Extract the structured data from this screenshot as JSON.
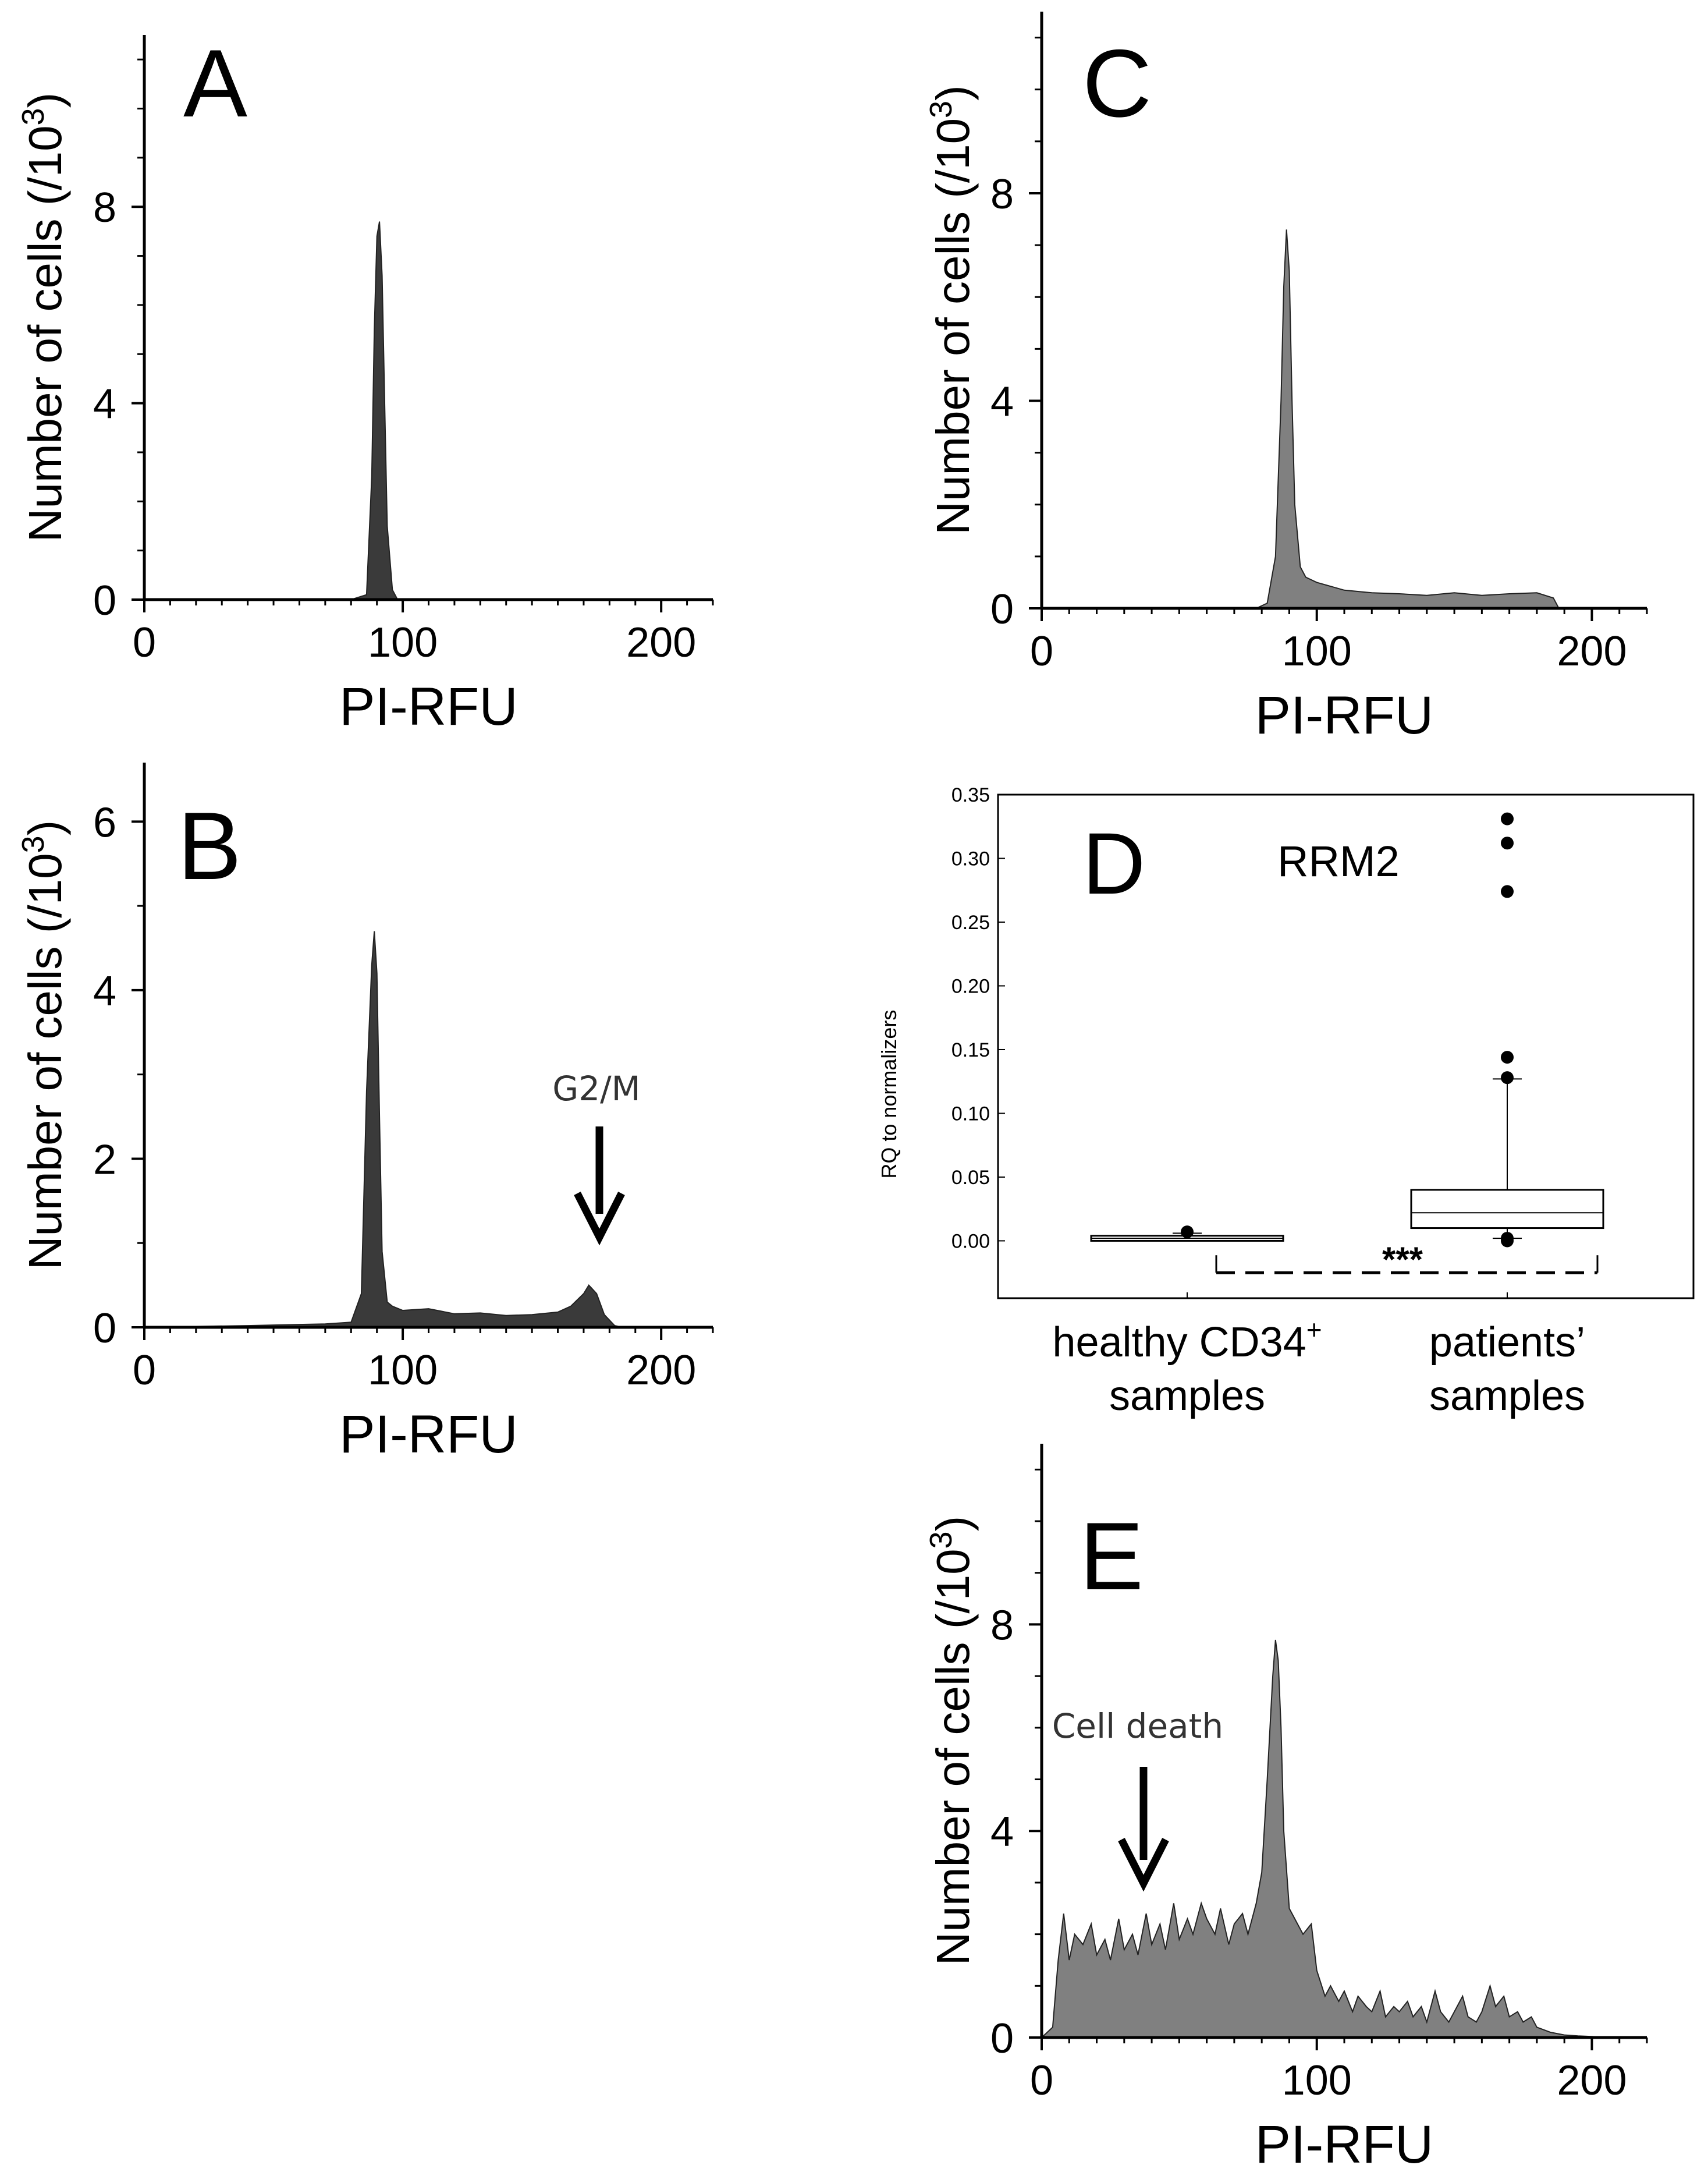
{
  "colors": {
    "hist_dark": "#3a3a3a",
    "hist_mid": "#808080",
    "line": "#000000"
  },
  "chart_data": [
    {
      "id": "A",
      "type": "area",
      "panel_label": "A",
      "xlabel": "PI-RFU",
      "ylabel": "Number of cells (/10",
      "ylabel_sup": "3",
      "ylabel_close": ")",
      "xlim": [
        0,
        220
      ],
      "ylim": [
        0,
        11.5
      ],
      "xticks": [
        0,
        100,
        200
      ],
      "yticks": [
        0,
        4,
        8
      ],
      "xtick_labels": [
        "0",
        "100",
        "200"
      ],
      "ytick_labels": [
        "0",
        "4",
        "8"
      ],
      "fill": "#3a3a3a",
      "x": [
        0,
        80,
        86,
        88,
        89,
        90,
        91,
        92,
        93,
        94,
        96,
        98,
        220
      ],
      "y": [
        0,
        0,
        0.1,
        2.5,
        5.5,
        7.4,
        7.7,
        6.6,
        4.0,
        1.5,
        0.2,
        0,
        0
      ]
    },
    {
      "id": "B",
      "type": "area",
      "panel_label": "B",
      "xlabel": "PI-RFU",
      "ylabel": "Number of cells (/10",
      "ylabel_sup": "3",
      "ylabel_close": ")",
      "xlim": [
        0,
        220
      ],
      "ylim": [
        0,
        6.7
      ],
      "xticks": [
        0,
        100,
        200
      ],
      "yticks": [
        0,
        2,
        4,
        6
      ],
      "xtick_labels": [
        "0",
        "100",
        "200"
      ],
      "ytick_labels": [
        "0",
        "2",
        "4",
        "6"
      ],
      "fill": "#3a3a3a",
      "annotation": {
        "text": "G2/M",
        "x": 172,
        "y": 0.6
      },
      "x": [
        0,
        40,
        70,
        80,
        84,
        86,
        88,
        89,
        90,
        91,
        92,
        94,
        96,
        100,
        110,
        120,
        130,
        140,
        150,
        160,
        165,
        170,
        172,
        175,
        178,
        182,
        185,
        220
      ],
      "y": [
        0,
        0.02,
        0.04,
        0.06,
        0.4,
        2.8,
        4.3,
        4.7,
        4.2,
        2.5,
        0.9,
        0.3,
        0.25,
        0.2,
        0.22,
        0.16,
        0.17,
        0.14,
        0.15,
        0.18,
        0.25,
        0.4,
        0.5,
        0.4,
        0.15,
        0.02,
        0,
        0
      ]
    },
    {
      "id": "C",
      "type": "area",
      "panel_label": "C",
      "xlabel": "PI-RFU",
      "ylabel": "Number of cells (/10",
      "ylabel_sup": "3",
      "ylabel_close": ")",
      "xlim": [
        0,
        220
      ],
      "ylim": [
        0,
        11.5
      ],
      "xticks": [
        0,
        100,
        200
      ],
      "yticks": [
        0,
        4,
        8
      ],
      "xtick_labels": [
        "0",
        "100",
        "200"
      ],
      "ytick_labels": [
        "0",
        "4",
        "8"
      ],
      "fill": "#808080",
      "x": [
        0,
        78,
        82,
        85,
        87,
        88,
        89,
        90,
        91,
        92,
        94,
        96,
        100,
        110,
        120,
        130,
        140,
        150,
        160,
        170,
        180,
        186,
        188,
        220
      ],
      "y": [
        0,
        0,
        0.1,
        1.0,
        4.0,
        6.2,
        7.3,
        6.5,
        4.0,
        2.0,
        0.8,
        0.6,
        0.5,
        0.35,
        0.3,
        0.28,
        0.25,
        0.3,
        0.25,
        0.28,
        0.3,
        0.2,
        0,
        0
      ]
    },
    {
      "id": "D",
      "type": "box",
      "panel_label": "D",
      "title": "RRM2",
      "ylabel": "RQ to normalizers",
      "ylim": [
        -0.045,
        0.35
      ],
      "yticks": [
        0.0,
        0.05,
        0.1,
        0.15,
        0.2,
        0.25,
        0.3,
        0.35
      ],
      "ytick_labels": [
        "0.00",
        "0.05",
        "0.10",
        "0.15",
        "0.20",
        "0.25",
        "0.30",
        "0.35"
      ],
      "significance": "***",
      "groups": [
        {
          "label_line1": "healthy CD34",
          "label_sup": "+",
          "label_line2": "samples",
          "q1": 0.0,
          "median": 0.002,
          "q3": 0.004,
          "whisker_low": 0.0,
          "whisker_high": 0.006,
          "outliers": [
            0.007
          ]
        },
        {
          "label_line1": "patients’",
          "label_sup": "",
          "label_line2": "samples",
          "q1": 0.01,
          "median": 0.022,
          "q3": 0.04,
          "whisker_low": 0.002,
          "whisker_high": 0.127,
          "outliers": [
            0.0,
            0.002,
            0.128,
            0.144,
            0.274,
            0.312,
            0.331
          ]
        }
      ]
    },
    {
      "id": "E",
      "type": "area",
      "panel_label": "E",
      "xlabel": "PI-RFU",
      "ylabel": "Number of cells (/10",
      "ylabel_sup": "3",
      "ylabel_close": ")",
      "xlim": [
        0,
        220
      ],
      "ylim": [
        0,
        11.5
      ],
      "xticks": [
        0,
        100,
        200
      ],
      "yticks": [
        0,
        4,
        8
      ],
      "xtick_labels": [
        "0",
        "100",
        "200"
      ],
      "ytick_labels": [
        "0",
        "4",
        "8"
      ],
      "fill": "#808080",
      "annotation": {
        "text": "Cell death",
        "x": 37,
        "y": 3.2
      },
      "x": [
        0,
        4,
        6,
        8,
        10,
        12,
        15,
        18,
        20,
        23,
        25,
        28,
        30,
        33,
        35,
        38,
        40,
        43,
        45,
        48,
        50,
        53,
        55,
        58,
        60,
        63,
        65,
        68,
        70,
        73,
        75,
        78,
        80,
        82,
        84,
        85,
        86,
        87,
        88,
        90,
        92,
        95,
        98,
        100,
        103,
        105,
        108,
        110,
        113,
        115,
        118,
        120,
        123,
        125,
        128,
        130,
        133,
        135,
        138,
        140,
        143,
        145,
        148,
        150,
        153,
        155,
        158,
        160,
        163,
        165,
        168,
        170,
        173,
        175,
        178,
        180,
        185,
        190,
        195,
        200,
        205,
        220
      ],
      "y": [
        0,
        0.2,
        1.5,
        2.4,
        1.5,
        2.0,
        1.8,
        2.2,
        1.6,
        1.9,
        1.5,
        2.3,
        1.7,
        2.0,
        1.6,
        2.4,
        1.8,
        2.2,
        1.7,
        2.6,
        1.9,
        2.3,
        2.0,
        2.6,
        2.3,
        2.0,
        2.5,
        1.8,
        2.2,
        2.4,
        2.0,
        2.6,
        3.2,
        5.0,
        7.0,
        7.7,
        7.3,
        6.0,
        4.0,
        2.5,
        2.3,
        2.0,
        2.2,
        1.3,
        0.8,
        1.0,
        0.7,
        0.9,
        0.5,
        0.8,
        0.6,
        0.5,
        0.9,
        0.4,
        0.6,
        0.5,
        0.7,
        0.4,
        0.6,
        0.3,
        0.9,
        0.5,
        0.3,
        0.5,
        0.8,
        0.4,
        0.3,
        0.5,
        1.0,
        0.6,
        0.8,
        0.4,
        0.5,
        0.3,
        0.4,
        0.2,
        0.1,
        0.05,
        0.03,
        0.02,
        0,
        0
      ]
    }
  ]
}
